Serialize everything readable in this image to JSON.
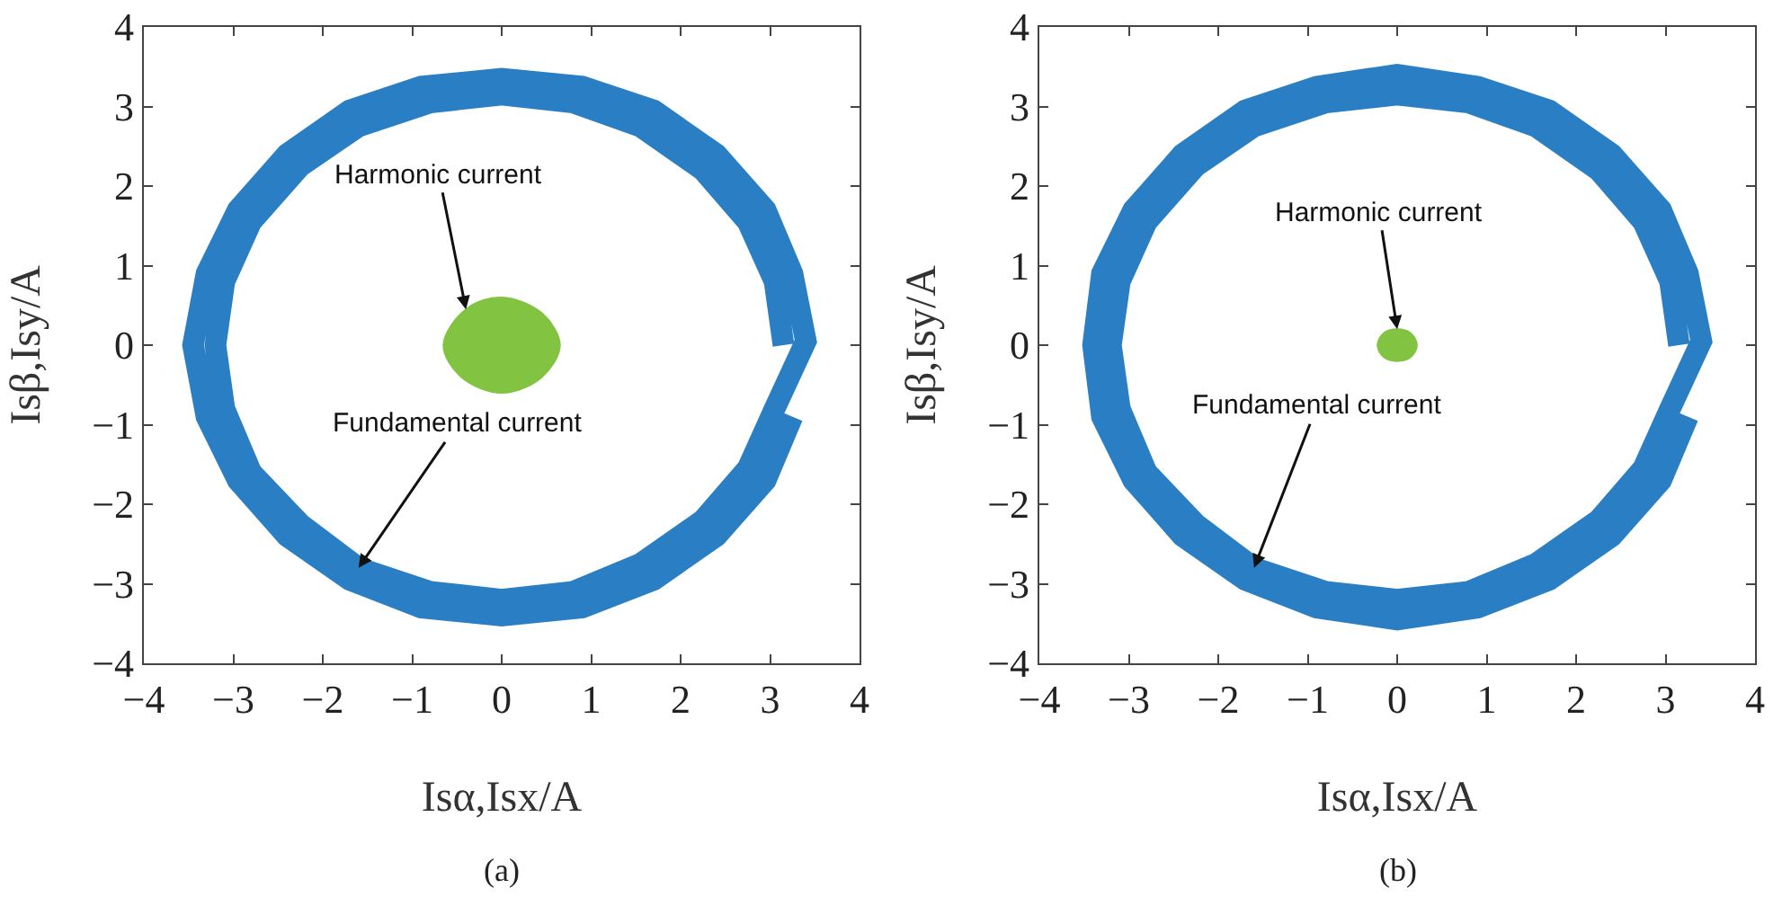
{
  "chart_data": [
    {
      "type": "line",
      "xlabel": "Isα,Isx/A",
      "ylabel": "Isβ,Isy/A",
      "xlim": [
        -4,
        4
      ],
      "ylim": [
        -4,
        4
      ],
      "xticks": [
        -4,
        -3,
        -2,
        -1,
        0,
        1,
        2,
        3,
        4
      ],
      "yticks": [
        -4,
        -3,
        -2,
        -1,
        0,
        1,
        2,
        3,
        4
      ],
      "series": [
        {
          "type": "line",
          "color": "#2a7fc4",
          "x": [
            3.15,
            3.05,
            2.75,
            2.25,
            1.55,
            0.8,
            0,
            -0.8,
            -1.6,
            -2.25,
            -2.8,
            -3.1,
            -3.2,
            -3.1,
            -2.8,
            -2.25,
            -1.6,
            -0.8,
            0,
            0.8,
            1.55,
            2.25,
            2.75,
            3.05,
            3.4,
            3.25,
            2.95,
            2.4,
            1.7,
            0.9,
            0,
            -0.9,
            -1.7,
            -2.4,
            -2.95,
            -3.3,
            -3.45,
            -3.3,
            -2.95,
            -2.4,
            -1.7,
            -0.9,
            0,
            0.9,
            1.7,
            2.4,
            2.95,
            3.25
          ],
          "values": [
            0,
            0.8,
            1.55,
            2.2,
            2.75,
            3.05,
            3.15,
            3.05,
            2.75,
            2.25,
            1.55,
            0.8,
            0,
            -0.8,
            -1.6,
            -2.25,
            -2.8,
            -3.1,
            -3.2,
            -3.1,
            -2.75,
            -2.2,
            -1.55,
            -0.8,
            0.05,
            0.9,
            1.7,
            2.4,
            2.95,
            3.25,
            3.35,
            3.25,
            2.95,
            2.4,
            1.7,
            0.9,
            0,
            -0.9,
            -1.7,
            -2.4,
            -2.95,
            -3.3,
            -3.4,
            -3.3,
            -2.95,
            -2.4,
            -1.7,
            -0.9
          ]
        },
        {
          "type": "area",
          "color": "#82c341",
          "x": [
            0.65,
            0.45,
            0,
            -0.4,
            -0.65,
            -0.45,
            0,
            0.45,
            0.65
          ],
          "values": [
            0,
            0.4,
            0.6,
            0.45,
            0,
            -0.4,
            -0.6,
            -0.4,
            0
          ]
        }
      ],
      "annotations": [
        {
          "text": "Harmonic current",
          "x": -0.4,
          "y": 0.45
        },
        {
          "text": "Fundamental current",
          "x": -1.6,
          "y": -2.8
        },
        "(a)"
      ]
    },
    {
      "type": "line",
      "xlabel": "Isα,Isx/A",
      "ylabel": "Isβ,Isy/A",
      "xlim": [
        -4,
        4
      ],
      "ylim": [
        -4,
        4
      ],
      "xticks": [
        -4,
        -3,
        -2,
        -1,
        0,
        1,
        2,
        3,
        4
      ],
      "yticks": [
        -4,
        -3,
        -2,
        -1,
        0,
        1,
        2,
        3,
        4
      ],
      "series": [
        {
          "type": "line",
          "color": "#2a7fc4",
          "x": [
            3.15,
            3.05,
            2.75,
            2.25,
            1.55,
            0.8,
            0,
            -0.8,
            -1.6,
            -2.25,
            -2.8,
            -3.1,
            -3.2,
            -3.1,
            -2.8,
            -2.25,
            -1.6,
            -0.8,
            0,
            0.8,
            1.55,
            2.25,
            2.75,
            3.05,
            3.4,
            3.25,
            2.95,
            2.4,
            1.7,
            0.9,
            0,
            -0.9,
            -1.7,
            -2.4,
            -2.95,
            -3.3,
            -3.4,
            -3.3,
            -2.95,
            -2.4,
            -1.7,
            -0.9,
            0,
            0.9,
            1.7,
            2.4,
            2.95,
            3.25
          ],
          "values": [
            0,
            0.8,
            1.55,
            2.2,
            2.75,
            3.05,
            3.15,
            3.05,
            2.75,
            2.25,
            1.55,
            0.8,
            0,
            -0.8,
            -1.6,
            -2.25,
            -2.8,
            -3.1,
            -3.2,
            -3.1,
            -2.75,
            -2.2,
            -1.55,
            -0.8,
            0.05,
            0.9,
            1.7,
            2.4,
            2.95,
            3.25,
            3.4,
            3.25,
            2.95,
            2.4,
            1.7,
            0.9,
            0,
            -0.9,
            -1.7,
            -2.4,
            -2.95,
            -3.3,
            -3.45,
            -3.3,
            -2.95,
            -2.4,
            -1.7,
            -0.9
          ]
        },
        {
          "type": "area",
          "color": "#82c341",
          "x": [
            0.22,
            0.15,
            0,
            -0.15,
            -0.22,
            -0.15,
            0,
            0.15,
            0.22
          ],
          "values": [
            0,
            0.15,
            0.2,
            0.15,
            0,
            -0.15,
            -0.2,
            -0.15,
            0
          ]
        }
      ],
      "annotations": [
        {
          "text": "Harmonic current",
          "x": 0,
          "y": 0.2
        },
        {
          "text": "Fundamental current",
          "x": -1.6,
          "y": -2.8
        },
        "(b)"
      ]
    }
  ]
}
